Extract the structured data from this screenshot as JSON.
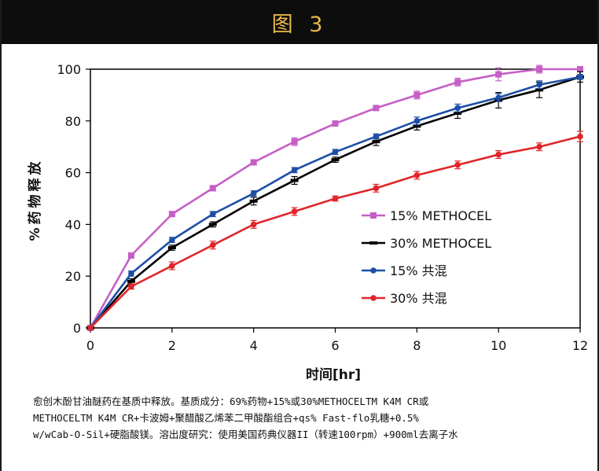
{
  "figure_title": "图 3",
  "caption": {
    "line1": "愈创木酚甘油醚药在基质中释放。基质成分：69%药物+15%或30%METHOCELTM K4M CR或",
    "line2": "METHOCELTM K4M CR+卡波姆+聚醋酸乙烯苯二甲酸酯组合+qs% Fast-flo乳糖+0.5%",
    "line3": "w/wCab-O-Sil+硬脂酸镁。溶出度研究：使用美国药典仪器II（转速100rpm）+900ml去离子水"
  },
  "chart_data": {
    "type": "line",
    "xlabel": "时间[hr]",
    "ylabel": "%药物释放",
    "xlim": [
      0,
      12
    ],
    "ylim": [
      0,
      100
    ],
    "xticks": [
      0,
      2,
      4,
      6,
      8,
      10,
      12
    ],
    "yticks": [
      0,
      20,
      40,
      60,
      80,
      100
    ],
    "grid": false,
    "legend_position": "right",
    "x": [
      0,
      1,
      2,
      3,
      4,
      5,
      6,
      7,
      8,
      9,
      10,
      11,
      12
    ],
    "series": [
      {
        "name": "15% METHOCEL",
        "color": "#c55fc6",
        "marker": "square",
        "values": [
          0,
          28,
          44,
          54,
          64,
          72,
          79,
          85,
          90,
          95,
          98,
          100,
          100
        ],
        "errors": [
          0,
          1,
          1,
          1,
          1,
          1.5,
          1,
          1,
          1.5,
          1.5,
          2.5,
          1.5,
          1
        ]
      },
      {
        "name": "30% METHOCEL",
        "color": "#000000",
        "marker": "dash",
        "values": [
          0,
          18,
          31,
          40,
          49,
          57,
          65,
          72,
          78,
          83,
          88,
          92,
          97
        ],
        "errors": [
          0,
          1,
          1,
          1,
          1.5,
          1.5,
          1,
          1.5,
          1.5,
          2,
          3,
          3,
          2
        ]
      },
      {
        "name": "15% 共混",
        "color": "#1d4fa6",
        "marker": "circle",
        "values": [
          0,
          21,
          34,
          44,
          52,
          61,
          68,
          74,
          80,
          85,
          89,
          94,
          97
        ],
        "errors": [
          0,
          1,
          1,
          1,
          1,
          1,
          1,
          1,
          1.5,
          1.5,
          1.5,
          1.5,
          1
        ]
      },
      {
        "name": "30% 共混",
        "color": "#e0262a",
        "marker": "circle",
        "values": [
          0,
          16,
          24,
          32,
          40,
          45,
          50,
          54,
          59,
          63,
          67,
          70,
          74
        ],
        "errors": [
          0,
          1,
          1.5,
          1.5,
          1.5,
          1.5,
          1,
          1.5,
          1.5,
          1.5,
          1.5,
          1.5,
          2
        ]
      }
    ]
  }
}
